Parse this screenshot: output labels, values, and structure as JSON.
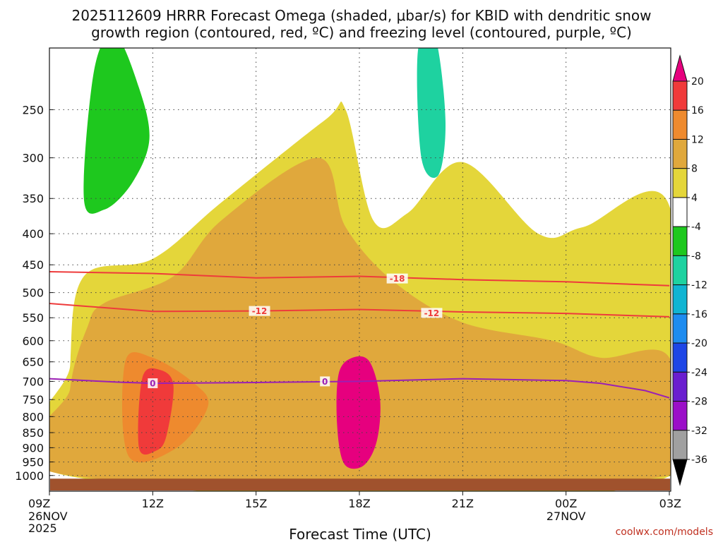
{
  "chart_data": {
    "type": "heatmap",
    "title_lines": [
      "2025112609 HRRR Forecast Omega (shaded, μbar/s) for KBID with dendritic snow",
      "growth region (contoured, red, ºC) and freezing level (contoured, purple, ºC)"
    ],
    "xlabel": "Forecast Time (UTC)",
    "x_ticks": [
      {
        "label": "09Z",
        "hours": 0,
        "date": "26NOV",
        "year": "2025"
      },
      {
        "label": "12Z",
        "hours": 3
      },
      {
        "label": "15Z",
        "hours": 6
      },
      {
        "label": "18Z",
        "hours": 9
      },
      {
        "label": "21Z",
        "hours": 12
      },
      {
        "label": "00Z",
        "hours": 15,
        "date": "27NOV"
      },
      {
        "label": "03Z",
        "hours": 18
      }
    ],
    "y_ticks": [
      250,
      300,
      350,
      400,
      450,
      500,
      550,
      600,
      650,
      700,
      750,
      800,
      850,
      900,
      950,
      1000
    ],
    "y_range_hpa": [
      200,
      1025
    ],
    "surface_pressure_hpa": 1012,
    "colorbar": {
      "levels": [
        20,
        16,
        12,
        8,
        4,
        -4,
        -8,
        -12,
        -16,
        -20,
        -24,
        -28,
        -32,
        -36
      ],
      "colors": [
        "#e6007e",
        "#f03a3a",
        "#ee8a2e",
        "#e0a83c",
        "#e4d63a",
        "#ffffff",
        "#1ec81e",
        "#1ed2a0",
        "#10b4d2",
        "#1e8cf0",
        "#1e46e6",
        "#6a1ecf",
        "#9b0fc8",
        "#a0a0a0",
        "#000000"
      ]
    },
    "temperature_contours": [
      {
        "label": "-18",
        "color": "#ee3b3b",
        "points": [
          [
            0,
            462
          ],
          [
            3,
            465
          ],
          [
            6,
            473
          ],
          [
            9,
            470
          ],
          [
            12,
            476
          ],
          [
            15,
            480
          ],
          [
            18,
            487
          ]
        ],
        "label_at": [
          10.1,
          474
        ]
      },
      {
        "label": "-12",
        "color": "#ee3b3b",
        "points": [
          [
            0,
            521
          ],
          [
            3,
            537
          ],
          [
            6,
            536
          ],
          [
            9,
            533
          ],
          [
            12,
            538
          ],
          [
            15,
            541
          ],
          [
            18,
            548
          ]
        ],
        "label_at": [
          [
            6.1,
            536
          ],
          [
            11.1,
            540
          ]
        ]
      },
      {
        "label": "0",
        "color": "#9b1fb4",
        "points": [
          [
            0,
            693
          ],
          [
            2,
            702
          ],
          [
            3,
            705
          ],
          [
            6,
            703
          ],
          [
            9,
            700
          ],
          [
            12,
            693
          ],
          [
            15,
            698
          ],
          [
            16,
            705
          ],
          [
            17.3,
            725
          ],
          [
            18,
            745
          ]
        ],
        "label_at": [
          [
            3,
            705
          ],
          [
            8,
            700
          ]
        ]
      }
    ],
    "omega_regions": [
      {
        "value_band": "4 to 8",
        "color": "#e4d63a",
        "polygon": [
          [
            0.6,
            1003
          ],
          [
            0.6,
            660
          ],
          [
            1.0,
            470
          ],
          [
            3,
            440
          ],
          [
            5,
            355
          ],
          [
            8,
            260
          ],
          [
            8.6,
            250
          ],
          [
            9.4,
            380
          ],
          [
            10.4,
            370
          ],
          [
            12,
            305
          ],
          [
            14.2,
            400
          ],
          [
            15.5,
            390
          ],
          [
            18,
            360
          ],
          [
            18,
            1003
          ]
        ]
      },
      {
        "value_band": "8 to 12",
        "color": "#e0a83c",
        "polygon": [
          [
            0.6,
            1000
          ],
          [
            0.6,
            720
          ],
          [
            1.1,
            570
          ],
          [
            1.6,
            520
          ],
          [
            3.6,
            470
          ],
          [
            5,
            380
          ],
          [
            7.8,
            300
          ],
          [
            8.6,
            390
          ],
          [
            10,
            480
          ],
          [
            12,
            560
          ],
          [
            14.6,
            600
          ],
          [
            16,
            640
          ],
          [
            18,
            640
          ],
          [
            18,
            1000
          ]
        ]
      },
      {
        "value_band": "12 to 16",
        "color": "#ee8a2e",
        "polygon": [
          [
            2.3,
            930
          ],
          [
            2.2,
            650
          ],
          [
            3,
            640
          ],
          [
            4.2,
            705
          ],
          [
            4.6,
            770
          ],
          [
            3.7,
            900
          ]
        ]
      },
      {
        "value_band": "16 to 20",
        "color": "#f03a3a",
        "polygon": [
          [
            2.6,
            900
          ],
          [
            2.7,
            690
          ],
          [
            3.2,
            670
          ],
          [
            3.6,
            710
          ],
          [
            3.4,
            860
          ],
          [
            3.1,
            910
          ]
        ]
      },
      {
        "value_band": "> 20",
        "color": "#e6007e",
        "polygon": [
          [
            8.55,
            955
          ],
          [
            8.35,
            820
          ],
          [
            8.4,
            680
          ],
          [
            8.8,
            640
          ],
          [
            9.3,
            650
          ],
          [
            9.6,
            750
          ],
          [
            9.5,
            880
          ],
          [
            9.1,
            965
          ]
        ]
      },
      {
        "value_band": "-4 to -8",
        "color": "#1ec81e",
        "polygon": [
          [
            1.0,
            350
          ],
          [
            1.3,
            215
          ],
          [
            1.9,
            188
          ],
          [
            2.6,
            230
          ],
          [
            2.9,
            280
          ],
          [
            2.4,
            330
          ],
          [
            1.6,
            365
          ]
        ]
      },
      {
        "value_band": "-8 to -12",
        "color": "#1ed2a0",
        "polygon": [
          [
            10.8,
            300
          ],
          [
            10.7,
            200
          ],
          [
            11.2,
            190
          ],
          [
            11.5,
            260
          ],
          [
            11.3,
            320
          ]
        ]
      }
    ],
    "credit": "coolwx.com/models"
  }
}
